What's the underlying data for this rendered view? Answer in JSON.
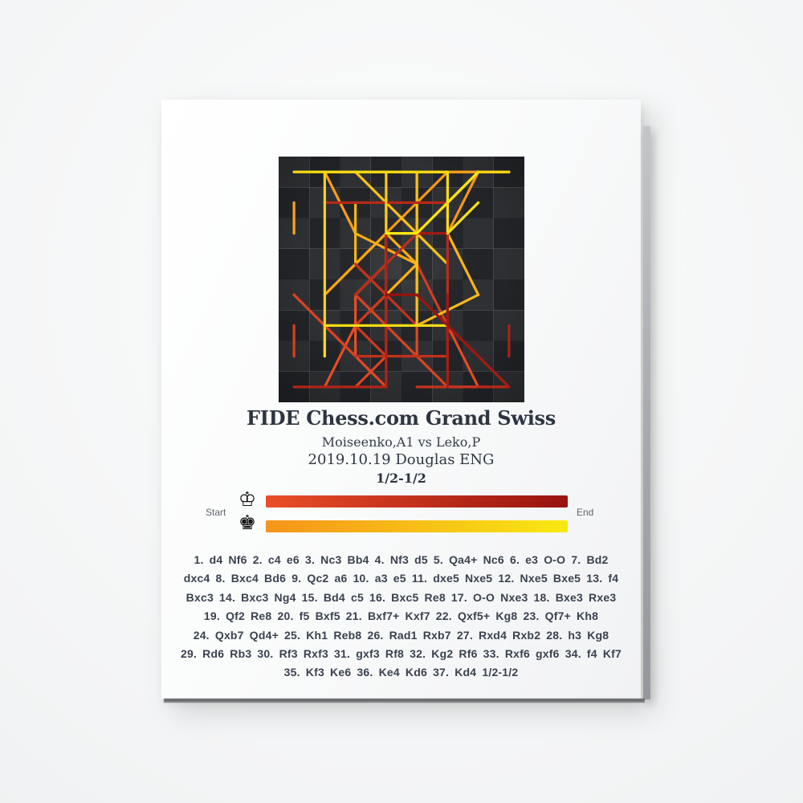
{
  "poster": {
    "title": "FIDE Chess.com Grand Swiss",
    "players": "Moiseenko,A1 vs Leko,P",
    "event": "2019.10.19 Douglas ENG",
    "result": "1/2-1/2"
  },
  "legend": {
    "start_label": "Start",
    "end_label": "End",
    "white_king_icon": "♔",
    "black_king_icon": "♚",
    "white_gradient": {
      "start": "#ea4f27",
      "end": "#981310"
    },
    "black_gradient": {
      "start": "#f6941b",
      "end": "#f8e912"
    }
  },
  "moves": {
    "lines": [
      "1. d4 Nf6 2. c4 e6 3. Nc3 Bb4 4. Nf3 d5 5. Qa4+ Nc6 6. e3 O-O 7. Bd2",
      "dxc4 8. Bxc4 Bd6 9. Qc2 a6 10. a3 e5 11. dxe5 Nxe5 12. Nxe5 Bxe5 13. f4",
      "Bxc3 14. Bxc3 Ng4 15. Bd4 c5 16. Bxc5 Re8 17. O-O Nxe3 18. Bxe3 Rxe3",
      "19. Qf2 Re8 20. f5 Bxf5 21. Bxf7+ Kxf7 22. Qxf5+ Kg8 23. Qf7+ Kh8",
      "24. Qxb7 Qd4+ 25. Kh1 Reb8 26. Rad1 Rxb7 27. Rxd4 Rxb2 28. h3 Kg8",
      "29. Rd6 Rb3 30. Rf3 Rxf3 31. gxf3 Rf8 32. Kg2 Rf6 33. Rxf6 gxf6 34. f4 Kf7",
      "35. Kf3 Ke6 36. Ke4 Kd6 37. Kd4 1/2-1/2"
    ]
  },
  "board_art": {
    "type": "chess-move-trace",
    "square_light": "#2f3033",
    "square_dark": "#232428",
    "line_width": 3.2,
    "white_moves": [
      "d2-d4",
      "c2-c4",
      "b1-c3",
      "g1-f3",
      "d1-a4",
      "e2-e3",
      "c1-d2",
      "f1-c4",
      "a4-c2",
      "a2-a3",
      "d4-e5",
      "f3-e5",
      "f2-f4",
      "d2-c3",
      "c3-d4",
      "d4-c5",
      "e1-g1,h1-f1",
      "c5-e3",
      "c2-f2",
      "f4-f5",
      "c4-f7",
      "f2-f5",
      "f5-f7",
      "f7-b7",
      "g1-h1",
      "a1-d1",
      "d1-d4",
      "h2-h3",
      "d4-d6",
      "f1-f3",
      "g2-f3",
      "h1-g2",
      "d6-f6",
      "f3-f4",
      "g2-f3",
      "f3-e4",
      "e4-d4"
    ],
    "black_moves": [
      "g8-f6",
      "e7-e6",
      "f8-b4",
      "d7-d5",
      "b8-c6",
      "e8-g8,h8-f8",
      "d5-c4",
      "b4-d6",
      "a7-a6",
      "e6-e5",
      "c6-e5",
      "d6-e5",
      "e5-c3",
      "f6-g4",
      "c7-c5",
      "f8-e8",
      "g4-e3",
      "e8-e3",
      "e3-e8",
      "c8-f5",
      "g8-f7",
      "f7-g8",
      "g8-h8",
      "d8-d4",
      "e8-b8",
      "b8-b7",
      "b7-b2",
      "h8-g8",
      "b2-b3",
      "b3-f3",
      "a8-f8",
      "f8-f6",
      "g7-f6",
      "g8-f7",
      "f7-e6",
      "e6-d6"
    ]
  }
}
